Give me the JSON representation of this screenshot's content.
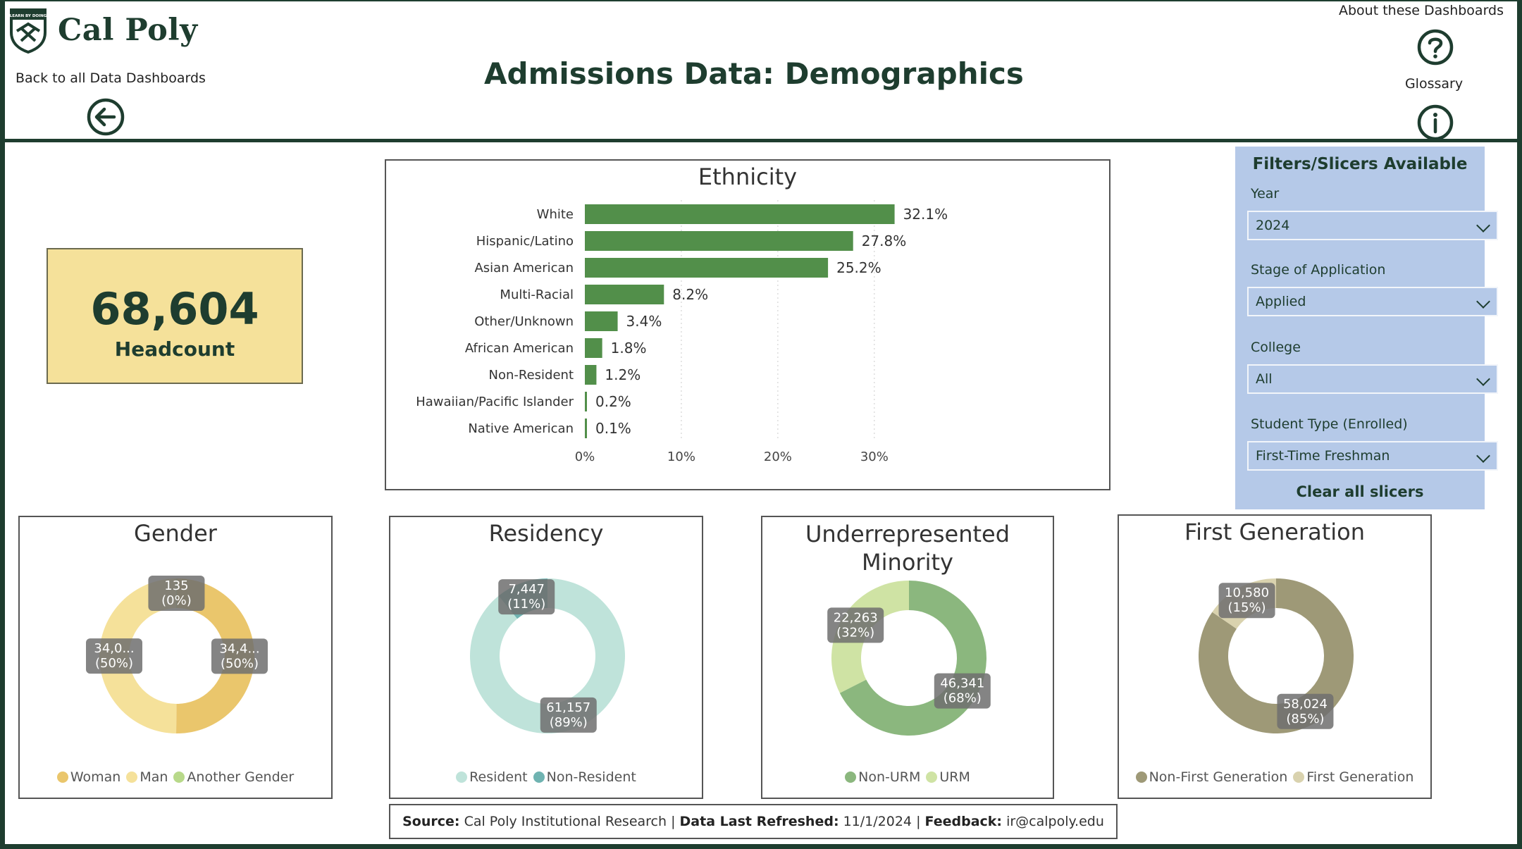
{
  "header": {
    "logo_text": "Cal Poly",
    "logo_badge_text": "LEARN BY DOING",
    "back_label": "Back to all Data Dashboards",
    "title": "Admissions Data: Demographics",
    "about_label": "About these Dashboards",
    "glossary_label": "Glossary",
    "icons": {
      "back": "arrow-left-circle-icon",
      "help": "question-circle-icon",
      "info": "info-circle-icon"
    },
    "colors": {
      "brand": "#1e3d2f"
    }
  },
  "kpi": {
    "value": "68,604",
    "label": "Headcount",
    "background": "#f5e19a"
  },
  "filters": {
    "title": "Filters/Slicers Available",
    "fields": [
      {
        "label": "Year",
        "value": "2024"
      },
      {
        "label": "Stage of Application",
        "value": "Applied"
      },
      {
        "label": "College",
        "value": "All"
      },
      {
        "label": "Student Type (Enrolled)",
        "value": "First-Time Freshman"
      }
    ],
    "clear_label": "Clear all slicers",
    "background": "#b5c9e8"
  },
  "chart_data": [
    {
      "type": "bar",
      "orientation": "horizontal",
      "title": "Ethnicity",
      "categories": [
        "White",
        "Hispanic/Latino",
        "Asian American",
        "Multi-Racial",
        "Other/Unknown",
        "African American",
        "Non-Resident",
        "Hawaiian/Pacific Islander",
        "Native American"
      ],
      "values": [
        32.1,
        27.8,
        25.2,
        8.2,
        3.4,
        1.8,
        1.2,
        0.2,
        0.1
      ],
      "labels": [
        "32.1%",
        "27.8%",
        "25.2%",
        "8.2%",
        "3.4%",
        "1.8%",
        "1.2%",
        "0.2%",
        "0.1%"
      ],
      "xlim": [
        0,
        36
      ],
      "xticks": [
        0,
        10,
        20,
        30
      ],
      "xtick_labels": [
        "0%",
        "10%",
        "20%",
        "30%"
      ],
      "grid": "vertical-dotted",
      "color": "#528f4a"
    },
    {
      "type": "pie",
      "donut": true,
      "title": "Gender",
      "slices": [
        {
          "name": "Woman",
          "value": 34400,
          "label": "34,4...\n(50%)",
          "color": "#eac66c"
        },
        {
          "name": "Man",
          "value": 34069,
          "label": "34,0...\n(50%)",
          "color": "#f5e19a"
        },
        {
          "name": "Another Gender",
          "value": 135,
          "label": "135\n(0%)",
          "color": "#b8d98a"
        }
      ],
      "legend": "bottom"
    },
    {
      "type": "pie",
      "donut": true,
      "title": "Residency",
      "slices": [
        {
          "name": "Resident",
          "value": 61157,
          "label": "61,157\n(89%)",
          "color": "#bfe3da"
        },
        {
          "name": "Non-Resident",
          "value": 7447,
          "label": "7,447\n(11%)",
          "color": "#6fb3b1"
        }
      ],
      "legend": "bottom"
    },
    {
      "type": "pie",
      "donut": true,
      "title": "Underrepresented\nMinority",
      "slices": [
        {
          "name": "Non-URM",
          "value": 46341,
          "label": "46,341\n(68%)",
          "color": "#8bb77e"
        },
        {
          "name": "URM",
          "value": 22263,
          "label": "22,263\n(32%)",
          "color": "#cfe3a4"
        }
      ],
      "legend": "bottom"
    },
    {
      "type": "pie",
      "donut": true,
      "title": "First Generation",
      "slices": [
        {
          "name": "Non-First Generation",
          "value": 58024,
          "label": "58,024\n(85%)",
          "color": "#9e9977"
        },
        {
          "name": "First Generation",
          "value": 10580,
          "label": "10,580\n(15%)",
          "color": "#d9d2ae"
        }
      ],
      "legend": "bottom"
    }
  ],
  "footer": {
    "source_label": "Source:",
    "source_value": "Cal Poly Institutional Research",
    "refreshed_label": "Data Last Refreshed:",
    "refreshed_value": "11/1/2024",
    "feedback_label": "Feedback:",
    "feedback_value": "ir@calpoly.edu",
    "separator": "|"
  }
}
